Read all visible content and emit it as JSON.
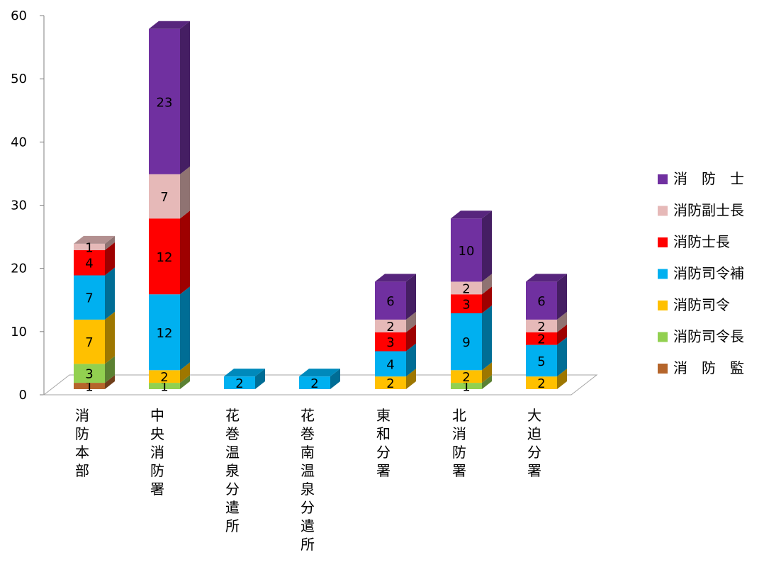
{
  "chart_data": {
    "type": "bar",
    "stacked": true,
    "three_d": true,
    "categories": [
      "消防本部",
      "中央消防署",
      "花巻温泉分遣所",
      "花巻南温泉分遣所",
      "東和分署",
      "北消防署",
      "大迫分署"
    ],
    "series": [
      {
        "name": "消　防　監",
        "color": "#b5652b",
        "values": [
          1,
          0,
          0,
          0,
          0,
          0,
          0
        ]
      },
      {
        "name": "消防司令長",
        "color": "#92d050",
        "values": [
          3,
          1,
          0,
          0,
          0,
          1,
          0
        ]
      },
      {
        "name": "消防司令",
        "color": "#ffc000",
        "values": [
          7,
          2,
          0,
          0,
          2,
          2,
          2
        ]
      },
      {
        "name": "消防司令補",
        "color": "#00b0f0",
        "values": [
          7,
          12,
          2,
          2,
          4,
          9,
          5
        ]
      },
      {
        "name": "消防士長",
        "color": "#ff0000",
        "values": [
          4,
          12,
          0,
          0,
          3,
          3,
          2
        ]
      },
      {
        "name": "消防副士長",
        "color": "#e6b9b8",
        "values": [
          1,
          7,
          0,
          0,
          2,
          2,
          2
        ]
      },
      {
        "name": "消　防　士",
        "color": "#7030a0",
        "values": [
          0,
          23,
          0,
          0,
          6,
          10,
          6
        ]
      }
    ],
    "ylim": [
      0,
      60
    ],
    "yticks": [
      "0",
      "10",
      "20",
      "30",
      "40",
      "50",
      "60"
    ],
    "legend_position": "right",
    "grid": false
  }
}
